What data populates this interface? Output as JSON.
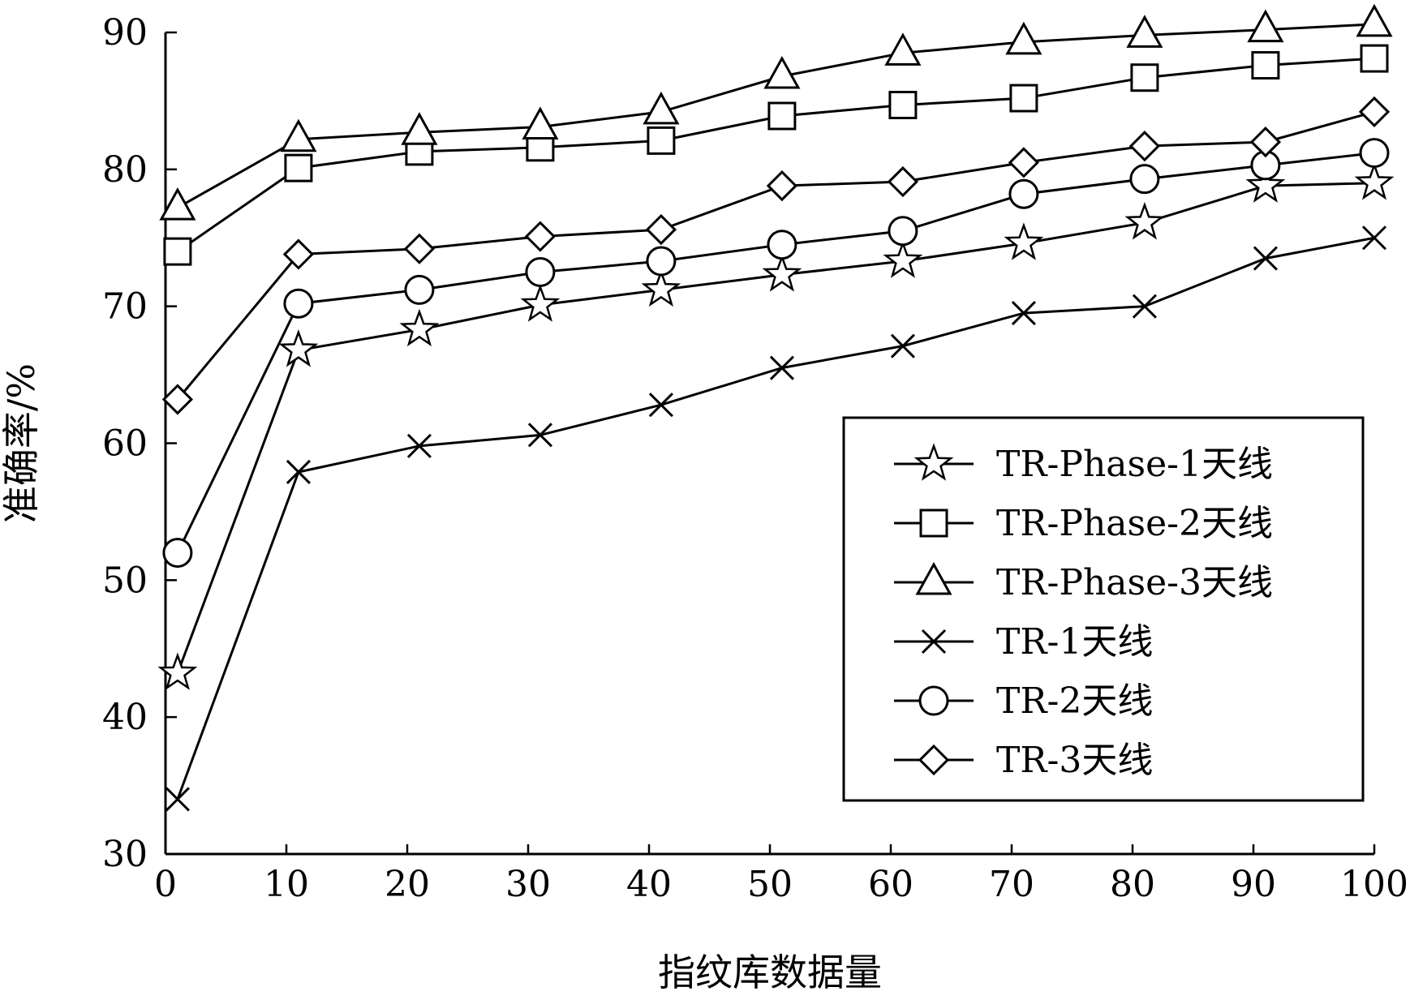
{
  "chart_data": {
    "type": "line",
    "xlabel": "指纹库数据量",
    "ylabel": "准确率/%",
    "xlim": [
      0,
      100
    ],
    "ylim": [
      30,
      90
    ],
    "x_ticks": [
      0,
      10,
      20,
      30,
      40,
      50,
      60,
      70,
      80,
      90,
      100
    ],
    "y_ticks": [
      30,
      40,
      50,
      60,
      70,
      80,
      90
    ],
    "grid": false,
    "legend_position": "right, lower-middle",
    "line_color": "#000000",
    "x": [
      1,
      11,
      21,
      31,
      41,
      51,
      61,
      71,
      81,
      91,
      100
    ],
    "series": [
      {
        "name": "TR-Phase-1天线",
        "marker": "star",
        "values": [
          43.2,
          66.8,
          68.3,
          70.1,
          71.2,
          72.3,
          73.3,
          74.6,
          76.1,
          78.8,
          79.0
        ]
      },
      {
        "name": "TR-Phase-2天线",
        "marker": "square",
        "values": [
          74.0,
          80.1,
          81.3,
          81.6,
          82.1,
          83.9,
          84.7,
          85.2,
          86.7,
          87.6,
          88.1
        ]
      },
      {
        "name": "TR-Phase-3天线",
        "marker": "triangle",
        "values": [
          77.2,
          82.2,
          82.7,
          83.1,
          84.2,
          86.8,
          88.5,
          89.3,
          89.8,
          90.2,
          90.6
        ]
      },
      {
        "name": "TR-1天线",
        "marker": "x",
        "values": [
          34.0,
          57.9,
          59.8,
          60.6,
          62.8,
          65.5,
          67.1,
          69.5,
          70.0,
          73.5,
          75.0
        ]
      },
      {
        "name": "TR-2天线",
        "marker": "circle",
        "values": [
          52.0,
          70.2,
          71.2,
          72.5,
          73.3,
          74.5,
          75.5,
          78.2,
          79.3,
          80.3,
          81.2
        ]
      },
      {
        "name": "TR-3天线",
        "marker": "diamond",
        "values": [
          63.2,
          73.8,
          74.2,
          75.1,
          75.6,
          78.8,
          79.1,
          80.5,
          81.7,
          82.0,
          84.2
        ]
      }
    ]
  }
}
